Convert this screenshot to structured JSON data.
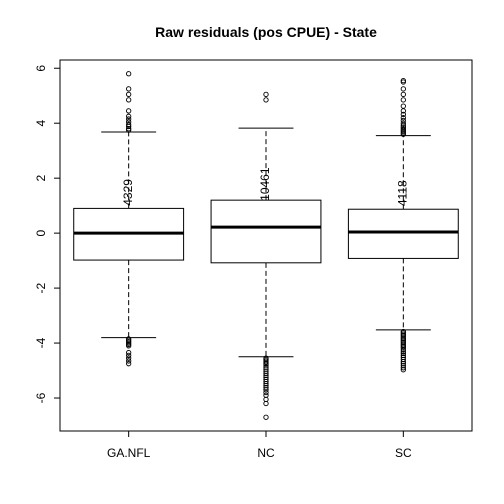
{
  "chart_data": {
    "type": "boxplot",
    "title": "Raw residuals (pos CPUE) - State",
    "xlabel": "",
    "ylabel": "",
    "categories": [
      "GA.NFL",
      "NC",
      "SC"
    ],
    "ylim": [
      -7.2,
      6.3
    ],
    "yticks": [
      -6,
      -4,
      -2,
      0,
      2,
      4,
      6
    ],
    "ytick_labels": [
      "-6",
      "-4",
      "-2",
      "0",
      "2",
      "4",
      "6"
    ],
    "boxes": [
      {
        "name": "GA.NFL",
        "count_label": "4329",
        "min": -3.8,
        "q1": -0.98,
        "median": 0.0,
        "q3": 0.9,
        "max": 3.68,
        "outliers_low": [
          -3.85,
          -3.9,
          -3.95,
          -4.0,
          -4.05,
          -4.1,
          -4.35,
          -4.45,
          -4.55,
          -4.65,
          -4.75
        ],
        "outliers_high": [
          3.75,
          3.8,
          3.88,
          3.95,
          4.05,
          4.15,
          4.25,
          4.45,
          4.85,
          5.05,
          5.25,
          5.8
        ]
      },
      {
        "name": "NC",
        "count_label": "10461",
        "min": -4.5,
        "q1": -1.08,
        "median": 0.22,
        "q3": 1.2,
        "max": 3.82,
        "outliers_low": [
          -4.55,
          -4.6,
          -4.65,
          -4.7,
          -4.75,
          -4.8,
          -4.88,
          -4.95,
          -5.02,
          -5.1,
          -5.18,
          -5.25,
          -5.32,
          -5.4,
          -5.48,
          -5.55,
          -5.62,
          -5.7,
          -5.8,
          -5.9,
          -6.05,
          -6.2,
          -6.7
        ],
        "outliers_high": [
          4.85,
          5.05
        ]
      },
      {
        "name": "SC",
        "count_label": "4118",
        "min": -3.52,
        "q1": -0.92,
        "median": 0.04,
        "q3": 0.87,
        "max": 3.55,
        "outliers_low": [
          -3.58,
          -3.63,
          -3.68,
          -3.73,
          -3.78,
          -3.83,
          -3.88,
          -3.93,
          -3.98,
          -4.03,
          -4.08,
          -4.13,
          -4.18,
          -4.25,
          -4.32,
          -4.38,
          -4.45,
          -4.52,
          -4.6,
          -4.68,
          -4.75,
          -4.82,
          -4.9,
          -4.97
        ],
        "outliers_high": [
          3.6,
          3.65,
          3.7,
          3.75,
          3.8,
          3.86,
          3.92,
          4.0,
          4.1,
          4.2,
          4.32,
          4.45,
          4.62,
          4.85,
          5.05,
          5.25,
          5.5,
          5.55
        ]
      }
    ]
  }
}
